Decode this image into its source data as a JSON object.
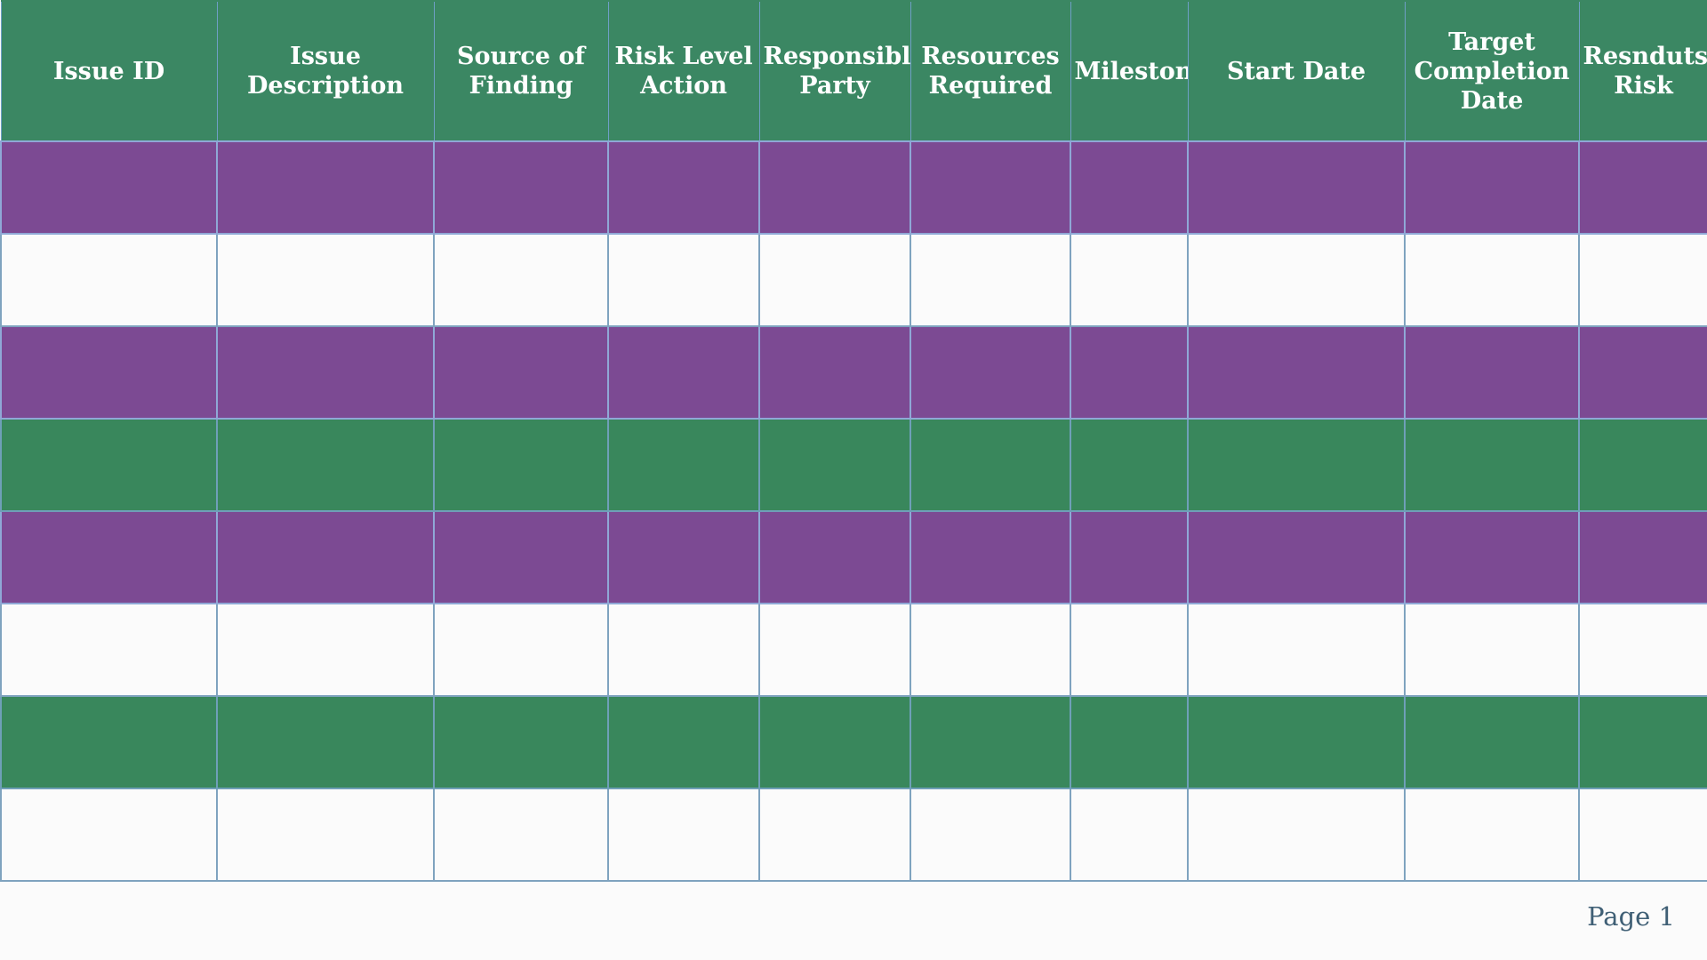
{
  "table": {
    "headers": [
      "Issue ID",
      "Issue Description",
      "Source of Finding",
      "Risk Level Action",
      "Responsible Party",
      "Resources Required",
      "Milestones",
      "Start Date",
      "Target Completion Date",
      "Resnduts/ Risk"
    ],
    "rows": [
      {
        "band": "purple",
        "cells": [
          "",
          "",
          "",
          "",
          "",
          "",
          "",
          "",
          "",
          ""
        ]
      },
      {
        "band": "white",
        "cells": [
          "",
          "",
          "",
          "",
          "",
          "",
          "",
          "",
          "",
          ""
        ]
      },
      {
        "band": "purple",
        "cells": [
          "",
          "",
          "",
          "",
          "",
          "",
          "",
          "",
          "",
          ""
        ]
      },
      {
        "band": "green",
        "cells": [
          "",
          "",
          "",
          "",
          "",
          "",
          "",
          "",
          "",
          ""
        ]
      },
      {
        "band": "purple",
        "cells": [
          "",
          "",
          "",
          "",
          "",
          "",
          "",
          "",
          "",
          ""
        ]
      },
      {
        "band": "white",
        "cells": [
          "",
          "",
          "",
          "",
          "",
          "",
          "",
          "",
          "",
          ""
        ]
      },
      {
        "band": "green",
        "cells": [
          "",
          "",
          "",
          "",
          "",
          "",
          "",
          "",
          "",
          ""
        ]
      },
      {
        "band": "white",
        "cells": [
          "",
          "",
          "",
          "",
          "",
          "",
          "",
          "",
          "",
          ""
        ]
      }
    ]
  },
  "colors": {
    "header_green": "#3b8763",
    "row_purple": "#7c4a93",
    "row_green": "#39875c",
    "row_white": "#fbfbfb",
    "grid_line": "#7aa6c8"
  },
  "footer": {
    "page_label": "Page 1"
  }
}
